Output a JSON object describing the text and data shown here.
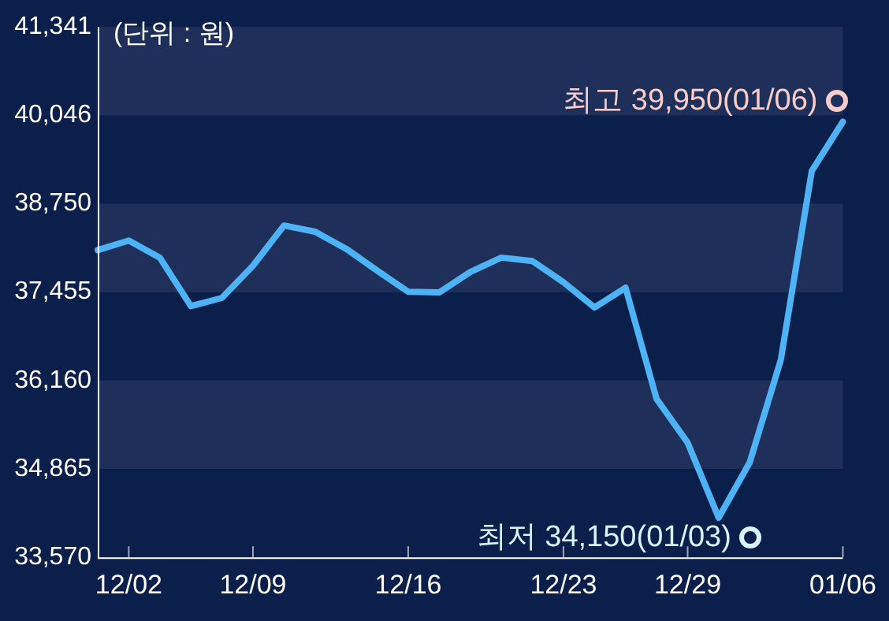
{
  "chart_data": {
    "type": "line",
    "categories": [
      null,
      "12/02",
      null,
      null,
      null,
      "12/09",
      null,
      null,
      null,
      null,
      "12/16",
      null,
      null,
      null,
      null,
      "12/23",
      null,
      null,
      null,
      "12/29",
      null,
      null,
      null,
      null,
      "01/06"
    ],
    "series": [
      {
        "color": "#4db3f5",
        "values": [
          38070,
          38210,
          37960,
          37250,
          37370,
          37840,
          38430,
          38340,
          38090,
          37770,
          37460,
          37450,
          37750,
          37960,
          37910,
          37600,
          37230,
          37520,
          35890,
          35250,
          34150,
          34960,
          36460,
          39230,
          39950
        ]
      }
    ],
    "ylim": [
      33570,
      41341
    ],
    "yticks": [
      {
        "value": 33570,
        "label": "33,570"
      },
      {
        "value": 34865,
        "label": "34,865"
      },
      {
        "value": 36160,
        "label": "36,160"
      },
      {
        "value": 37455,
        "label": "37,455"
      },
      {
        "value": 38750,
        "label": "38,750"
      },
      {
        "value": 40046,
        "label": "40,046"
      },
      {
        "value": 41341,
        "label": "41,341"
      }
    ],
    "legend": false,
    "marker": "none",
    "line_style": "solid",
    "annotations": [
      "(단위 : 원)",
      {
        "text": "최고 39,950(01/06)",
        "x": "01/06",
        "y": 39950
      },
      "최저 34,150(01/03)"
    ]
  }
}
